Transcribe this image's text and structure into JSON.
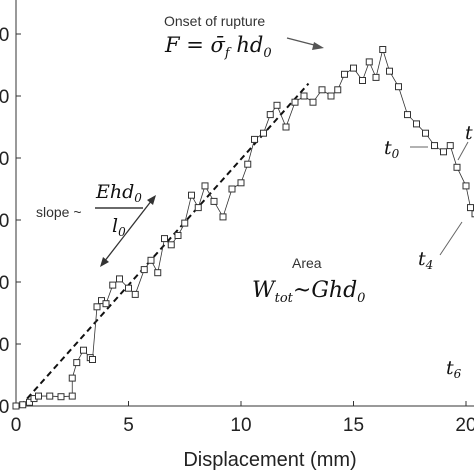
{
  "chart_data": {
    "type": "scatter",
    "xlabel": "Displacement (mm)",
    "xlim": [
      0,
      20.5
    ],
    "x_ticks": [
      "0",
      "5",
      "10",
      "15",
      "20"
    ],
    "y_ticks_visible": [
      "0",
      "0",
      "0",
      "0",
      "0",
      "0",
      "0"
    ],
    "series": [
      {
        "marker": "open-square",
        "color": "#333333",
        "points": [
          [
            0,
            0
          ],
          [
            0.3,
            0.02
          ],
          [
            0.6,
            0.06
          ],
          [
            0.8,
            0.12
          ],
          [
            1.0,
            0.16
          ],
          [
            1.5,
            0.16
          ],
          [
            2.0,
            0.15
          ],
          [
            2.5,
            0.16
          ],
          [
            2.5,
            0.45
          ],
          [
            2.7,
            0.7
          ],
          [
            3.0,
            0.9
          ],
          [
            3.3,
            0.78
          ],
          [
            3.4,
            0.75
          ],
          [
            3.6,
            1.6
          ],
          [
            3.8,
            1.7
          ],
          [
            4.0,
            1.65
          ],
          [
            4.3,
            1.95
          ],
          [
            4.6,
            2.05
          ],
          [
            5.0,
            1.9
          ],
          [
            5.3,
            1.8
          ],
          [
            5.7,
            2.2
          ],
          [
            6.0,
            2.35
          ],
          [
            6.3,
            2.15
          ],
          [
            6.6,
            2.7
          ],
          [
            6.9,
            2.6
          ],
          [
            7.2,
            2.75
          ],
          [
            7.5,
            2.95
          ],
          [
            7.8,
            3.4
          ],
          [
            8.1,
            3.2
          ],
          [
            8.4,
            3.55
          ],
          [
            8.8,
            3.3
          ],
          [
            9.2,
            3.05
          ],
          [
            9.6,
            3.5
          ],
          [
            10.0,
            3.6
          ],
          [
            10.3,
            3.9
          ],
          [
            10.6,
            4.3
          ],
          [
            11.0,
            4.4
          ],
          [
            11.3,
            4.7
          ],
          [
            11.6,
            4.85
          ],
          [
            12.0,
            4.5
          ],
          [
            12.4,
            4.9
          ],
          [
            12.8,
            5.0
          ],
          [
            13.2,
            4.9
          ],
          [
            13.6,
            5.1
          ],
          [
            14.0,
            5.0
          ],
          [
            14.3,
            5.1
          ],
          [
            14.6,
            5.35
          ],
          [
            15.0,
            5.45
          ],
          [
            15.4,
            5.25
          ],
          [
            15.7,
            5.55
          ],
          [
            16.0,
            5.3
          ],
          [
            16.3,
            5.75
          ],
          [
            16.6,
            5.4
          ],
          [
            17.0,
            5.15
          ],
          [
            17.4,
            4.7
          ],
          [
            17.8,
            4.55
          ],
          [
            18.2,
            4.4
          ],
          [
            18.6,
            4.2
          ],
          [
            19.0,
            4.1
          ],
          [
            19.3,
            4.2
          ],
          [
            19.6,
            3.85
          ],
          [
            20.0,
            3.55
          ],
          [
            20.2,
            3.2
          ],
          [
            20.4,
            3.1
          ]
        ]
      }
    ],
    "trend_line": {
      "style": "dashed",
      "from": [
        0.2,
        0.0
      ],
      "to": [
        13.0,
        5.2
      ]
    },
    "annotations": {
      "onset_label": "Onset of rupture",
      "onset_formula": "F = σ̄_f hd_0",
      "slope_prefix": "slope ~",
      "slope_numerator": "Ehd",
      "slope_numerator_sub": "0",
      "slope_denominator": "l",
      "slope_denominator_sub": "0",
      "area_label": "Area",
      "area_formula_w": "W",
      "area_formula_sub": "tot",
      "area_formula_rest": "~Ghd",
      "area_formula_rest_sub": "0",
      "t_labels": [
        {
          "text": "t",
          "sub": "0"
        },
        {
          "text": "t",
          "sub": "4"
        },
        {
          "text": "t",
          "sub": "6"
        },
        {
          "text": "t",
          "sub": ""
        }
      ]
    }
  }
}
